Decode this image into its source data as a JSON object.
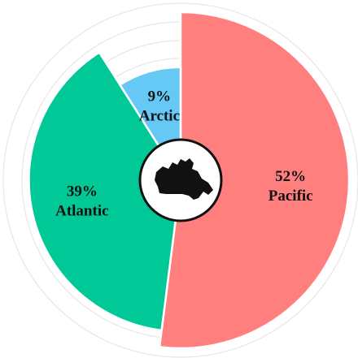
{
  "chart_data": {
    "type": "pie",
    "categories": [
      "Pacific",
      "Atlantic",
      "Arctic"
    ],
    "values": [
      52,
      39,
      9
    ],
    "value_labels": [
      "52%",
      "39%",
      "9%"
    ],
    "colors": [
      "#ff7f7f",
      "#00c896",
      "#66c8f5"
    ]
  }
}
